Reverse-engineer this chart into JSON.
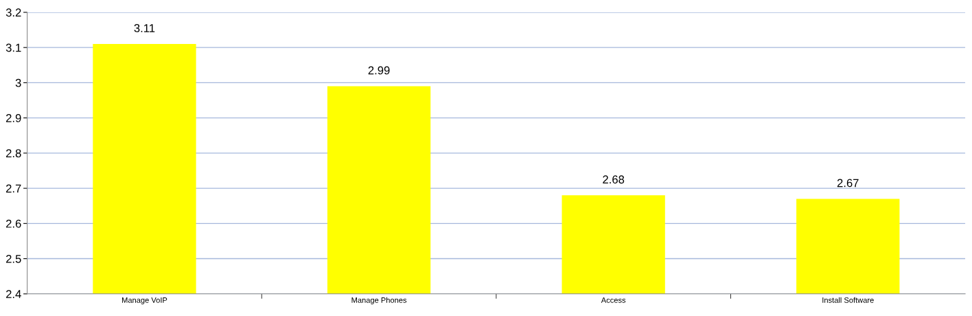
{
  "chart_data": {
    "type": "bar",
    "categories": [
      "Manage VoIP",
      "Manage Phones",
      "Access",
      "Install Software"
    ],
    "values": [
      3.11,
      2.99,
      2.68,
      2.67
    ],
    "color": "#ffff00",
    "ylim": [
      2.4,
      3.2
    ],
    "yticks": [
      2.4,
      2.5,
      2.6,
      2.7,
      2.8,
      2.9,
      3,
      3.1,
      3.2
    ],
    "grid": "y",
    "data_labels": true
  }
}
